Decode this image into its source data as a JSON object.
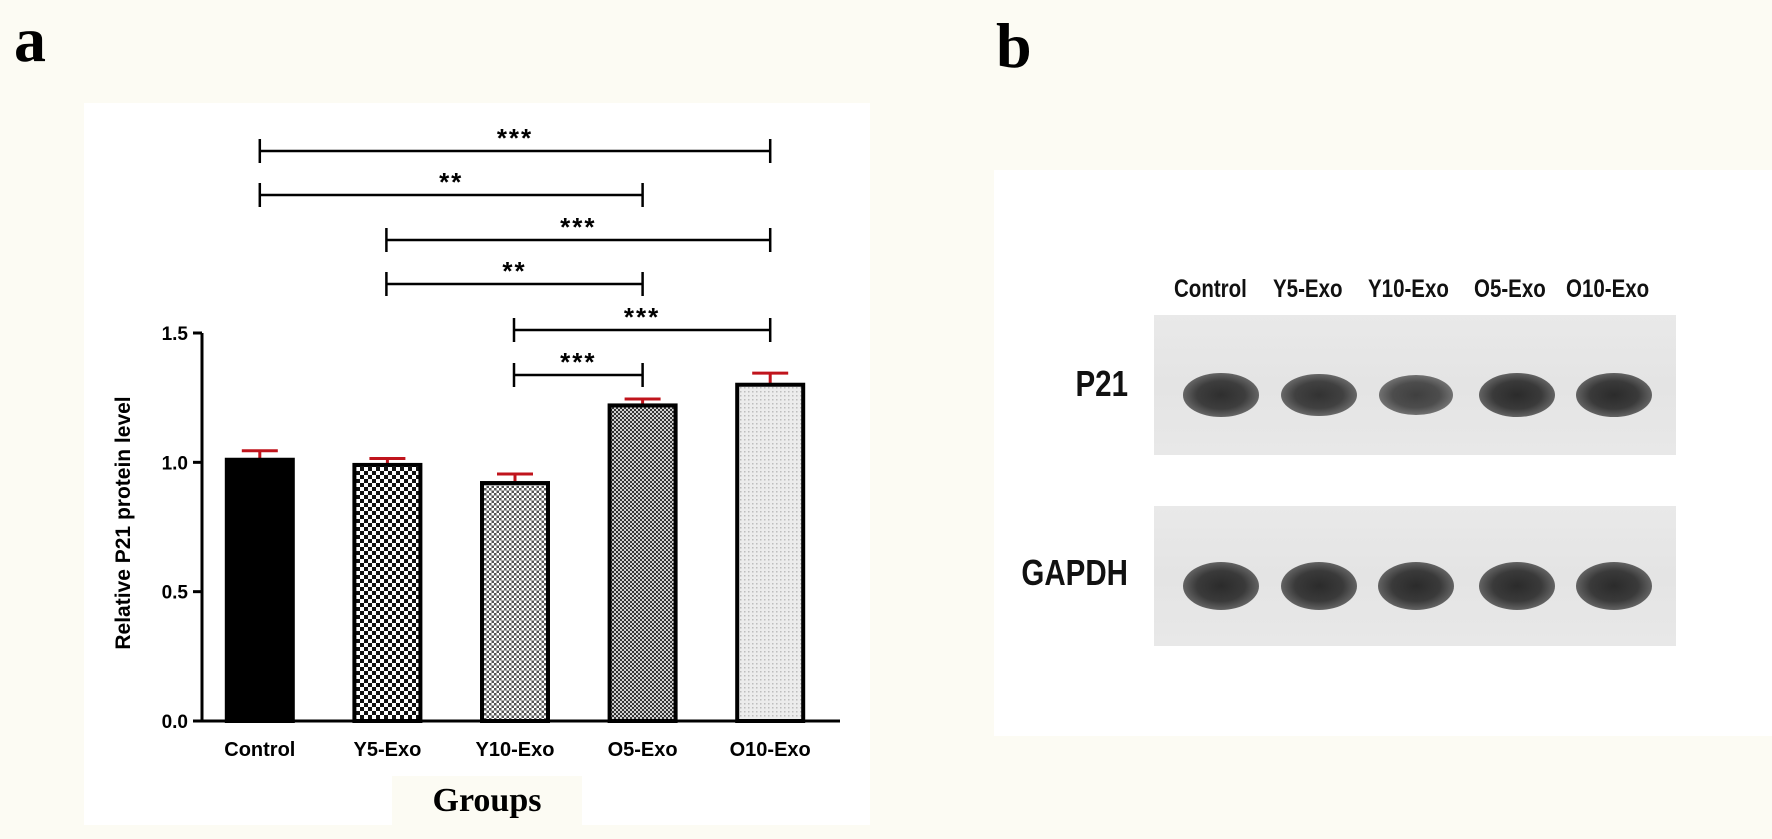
{
  "panels": {
    "a": "a",
    "b": "b"
  },
  "chart_data": {
    "type": "bar",
    "title": "",
    "xlabel": "Groups",
    "ylabel": "Relative P21 protein level",
    "categories": [
      "Control",
      "Y5-Exo",
      "Y10-Exo",
      "O5-Exo",
      "O10-Exo"
    ],
    "values": [
      1.01,
      0.99,
      0.92,
      1.22,
      1.3
    ],
    "errors": [
      0.035,
      0.025,
      0.035,
      0.025,
      0.045
    ],
    "ylim": [
      0,
      1.5
    ],
    "yticks": [
      "0.0",
      "0.5",
      "1.0",
      "1.5"
    ],
    "error_color": "#c0141c",
    "bar_patterns": [
      "solid-black",
      "checker-coarse",
      "checker-fine",
      "checker-dark-fine",
      "light-dots"
    ],
    "significance": [
      {
        "from": 0,
        "to": 4,
        "label": "***"
      },
      {
        "from": 0,
        "to": 3,
        "label": "**"
      },
      {
        "from": 1,
        "to": 4,
        "label": "***"
      },
      {
        "from": 1,
        "to": 3,
        "label": "**"
      },
      {
        "from": 2,
        "to": 4,
        "label": "***"
      },
      {
        "from": 2,
        "to": 3,
        "label": "***"
      }
    ]
  },
  "blot": {
    "lanes": [
      "Control",
      "Y5-Exo",
      "Y10-Exo",
      "O5-Exo",
      "O10-Exo"
    ],
    "proteins": [
      "P21",
      "GAPDH"
    ],
    "p21_intensity": [
      0.95,
      0.9,
      0.75,
      1.0,
      1.0
    ],
    "gapdh_intensity": [
      1.0,
      1.0,
      1.0,
      1.0,
      1.0
    ]
  }
}
